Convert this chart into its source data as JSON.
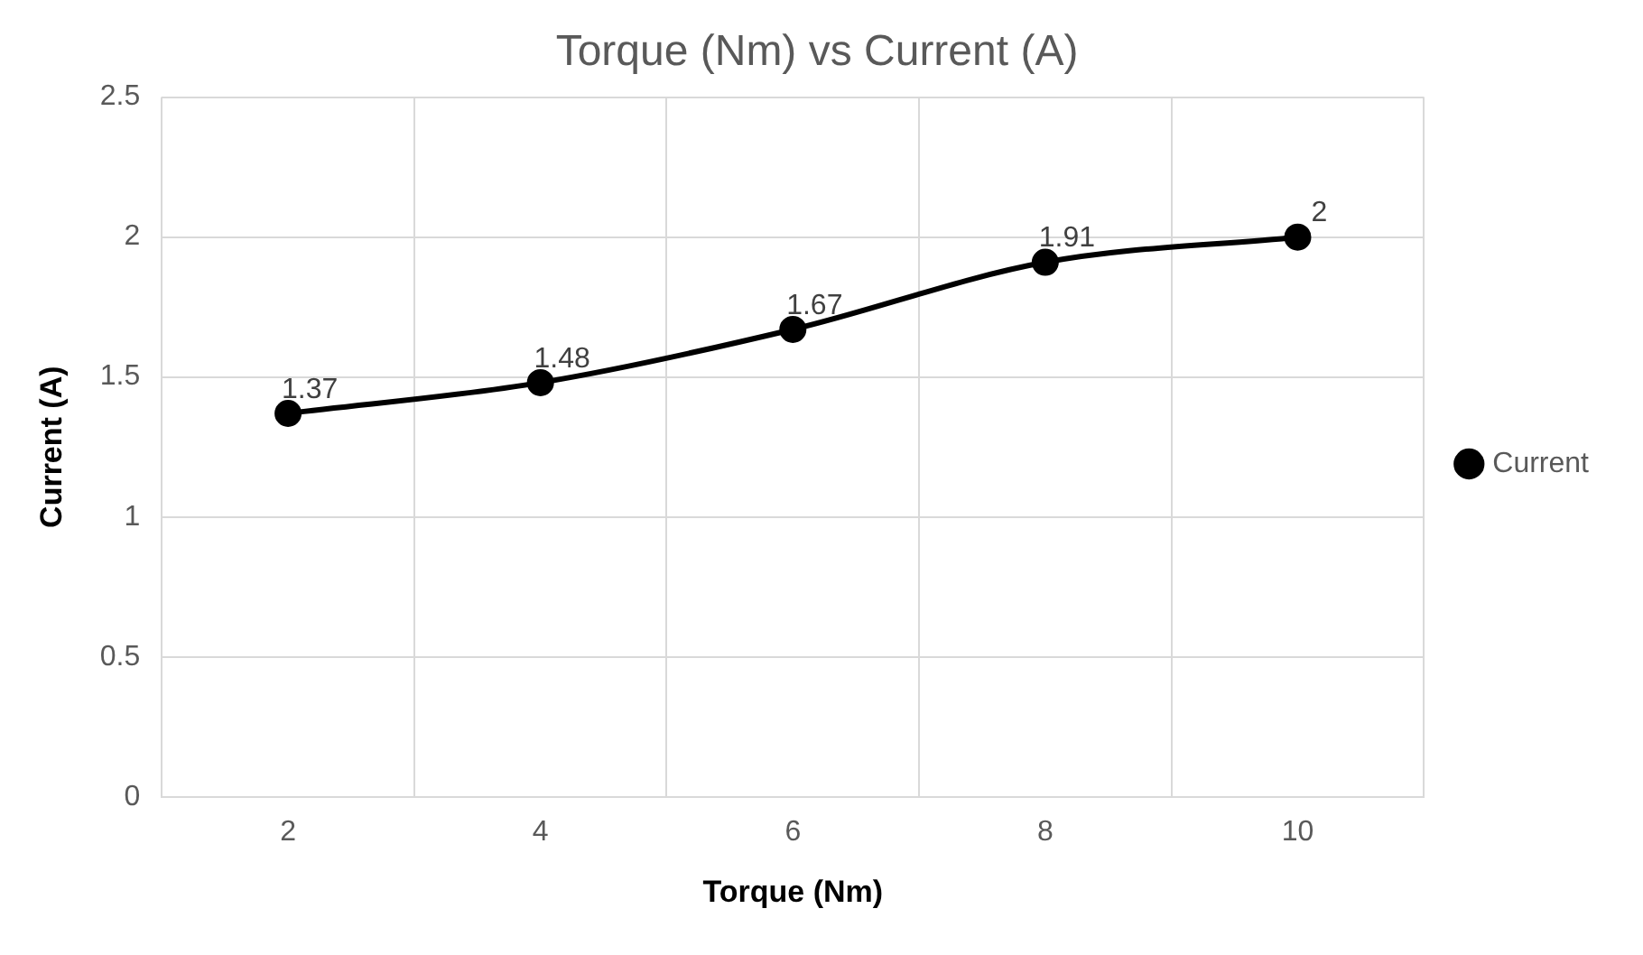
{
  "chart_data": {
    "type": "line",
    "title": "Torque (Nm) vs Current (A)",
    "xlabel": "Torque (Nm)",
    "ylabel": "Current (A)",
    "categories": [
      "2",
      "4",
      "6",
      "8",
      "10"
    ],
    "series": [
      {
        "name": "Current",
        "color": "#000000",
        "values": [
          1.37,
          1.48,
          1.67,
          1.91,
          2
        ]
      }
    ],
    "ylim": [
      0,
      2.5
    ],
    "yticks": [
      0,
      0.5,
      1,
      1.5,
      2,
      2.5
    ],
    "grid": true,
    "legend": "right",
    "marker": "circle",
    "line_style": "solid",
    "data_labels": true
  }
}
